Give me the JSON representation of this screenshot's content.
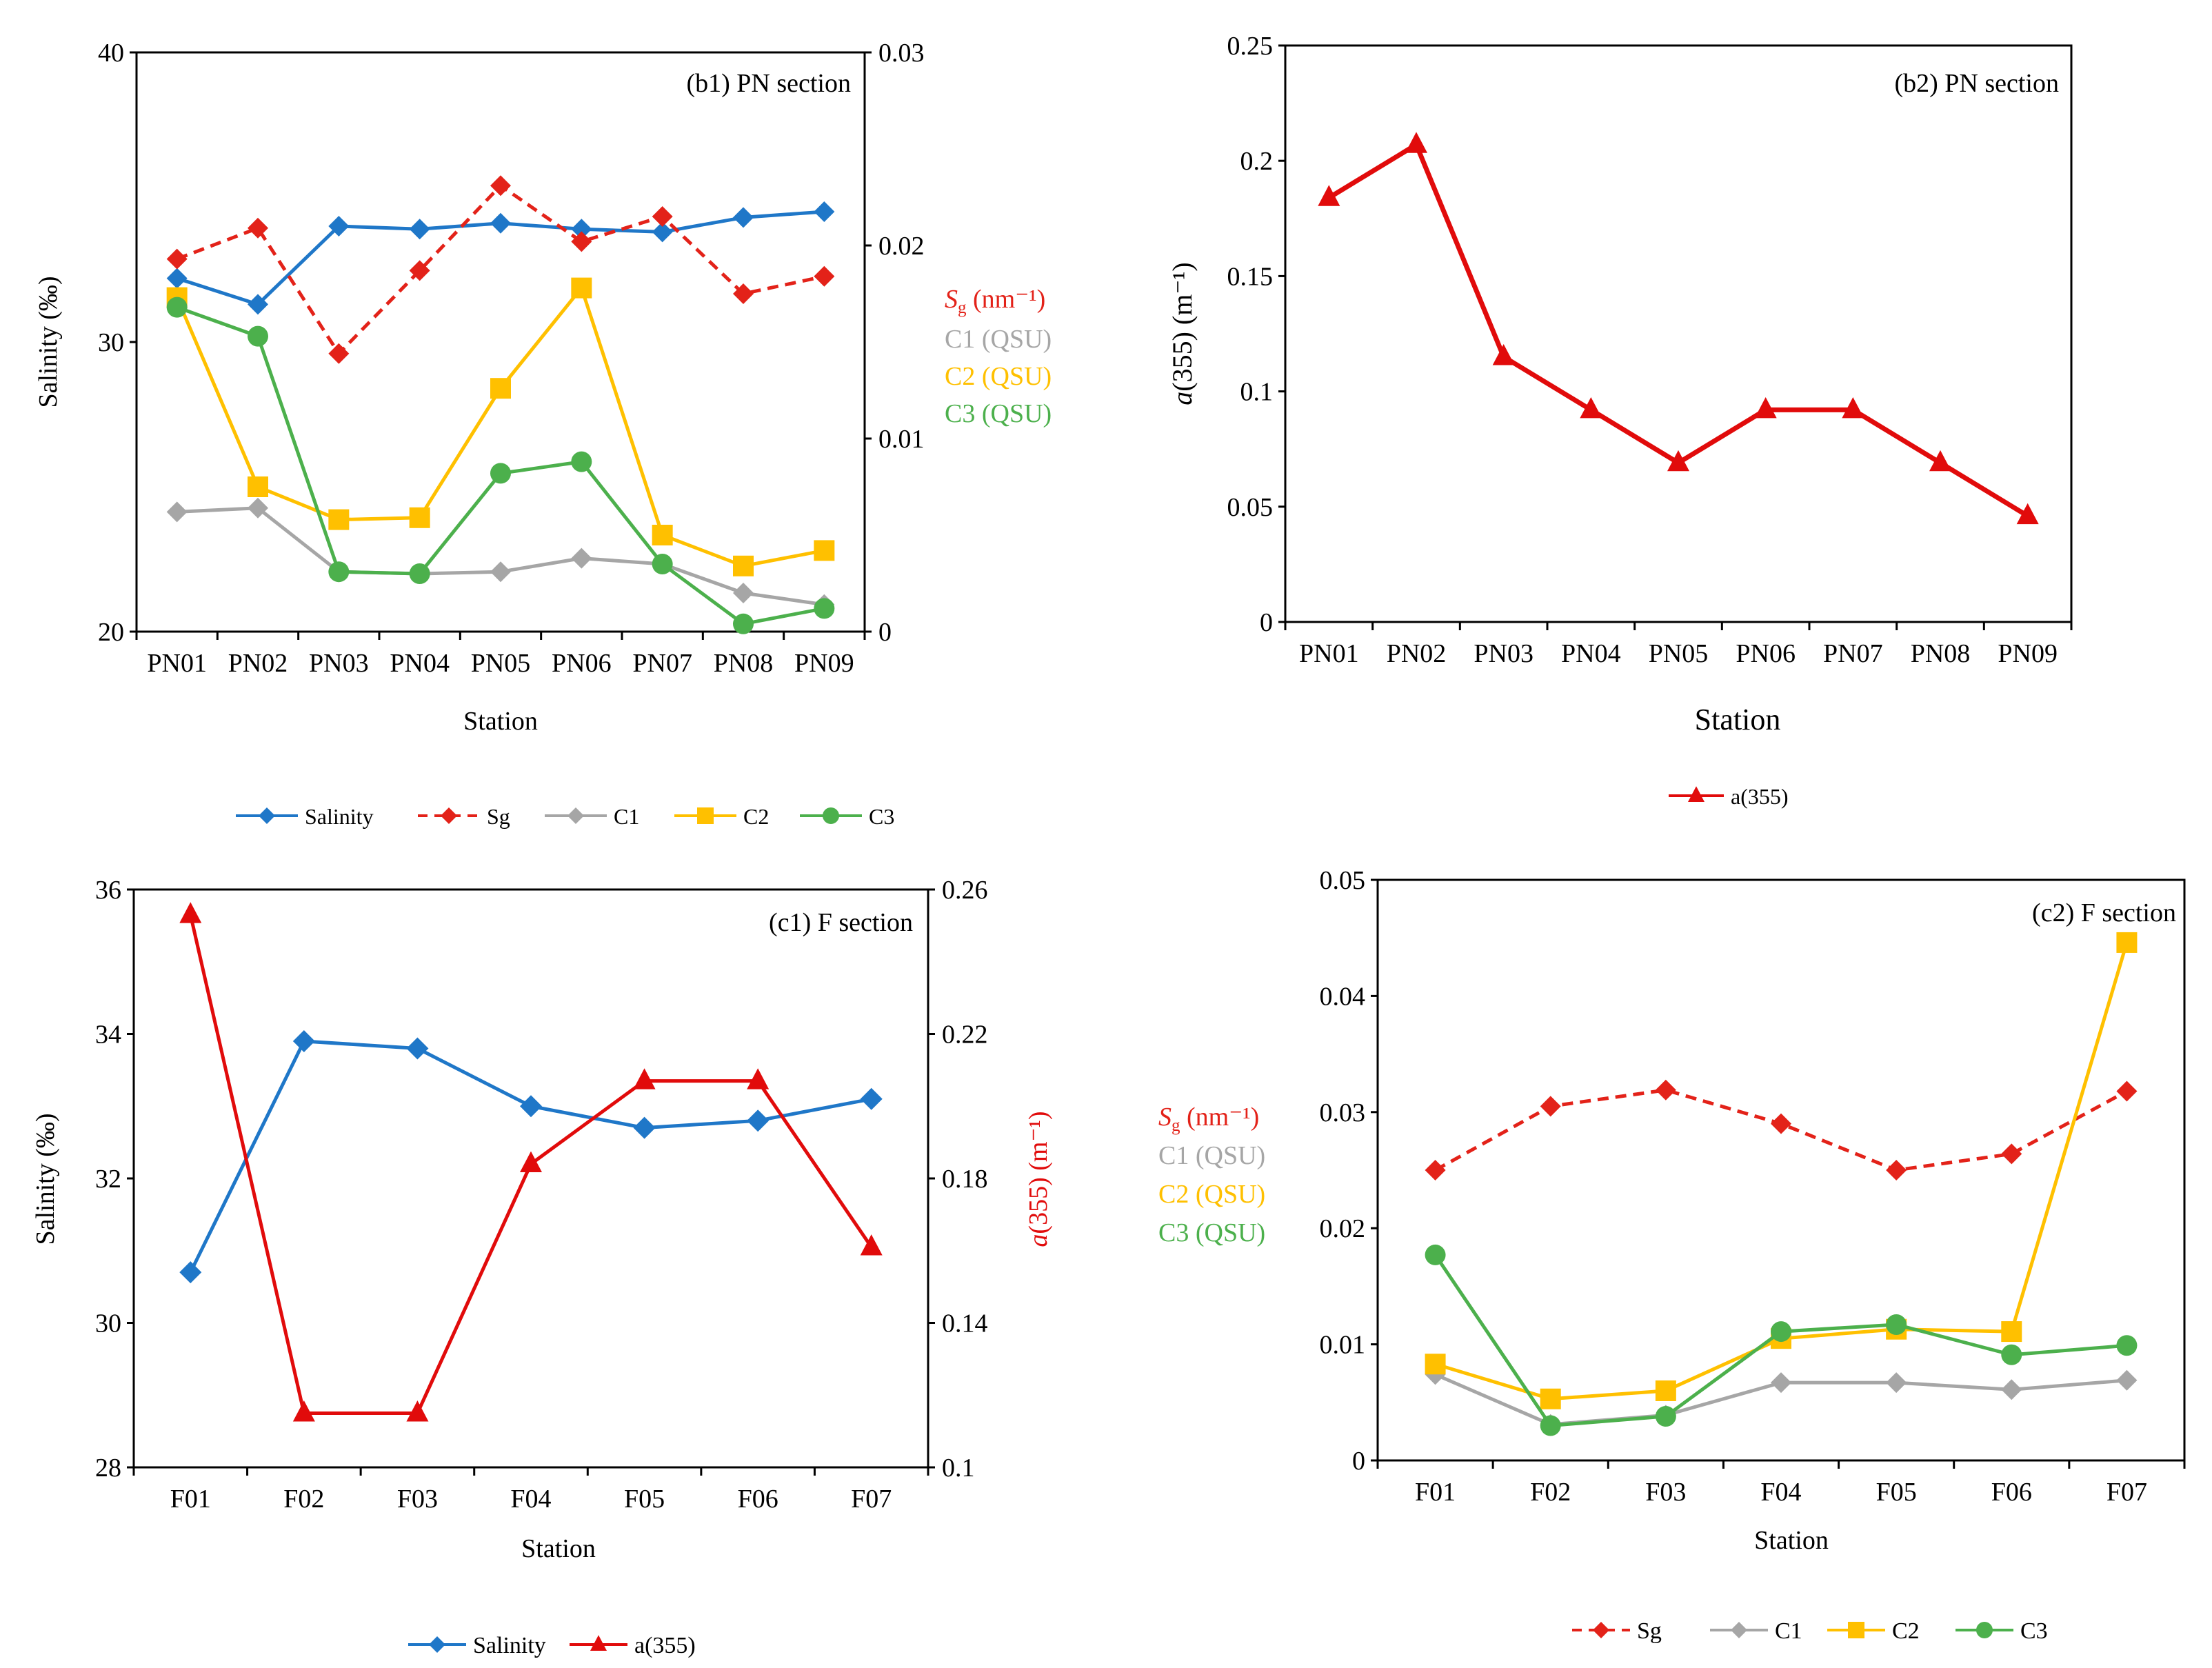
{
  "colors": {
    "salinity": "#1f77c8",
    "sg": "#e32219",
    "c1": "#a6a6a6",
    "c2": "#ffc000",
    "c3": "#4cb04c",
    "a355": "#e10b0b",
    "axis": "#000000"
  },
  "chart_data": [
    {
      "id": "b1",
      "type": "line",
      "title": "(b1) PN section",
      "categories": [
        "PN01",
        "PN02",
        "PN03",
        "PN04",
        "PN05",
        "PN06",
        "PN07",
        "PN08",
        "PN09"
      ],
      "xlabel": "Station",
      "ylabel": "Salinity (‰)",
      "ylim": [
        20,
        40
      ],
      "yticks": [
        "20",
        "30",
        "40"
      ],
      "y2lim": [
        0,
        0.03
      ],
      "y2ticks": [
        "0",
        "0.01",
        "0.02",
        "0.03"
      ],
      "y2legend": [
        {
          "main": "S",
          "sub": "g",
          "rest": " (nm⁻¹)",
          "color_key": "sg",
          "italic": true
        },
        {
          "main": "C1 (QSU)",
          "color_key": "c1"
        },
        {
          "main": "C2 (QSU)",
          "color_key": "c2"
        },
        {
          "main": "C3 (QSU)",
          "color_key": "c3"
        }
      ],
      "series": [
        {
          "name": "Salinity",
          "axis": "left",
          "marker": "diamond",
          "dash": false,
          "color_key": "salinity",
          "values": [
            32.2,
            31.3,
            34.0,
            33.9,
            34.1,
            33.9,
            33.8,
            34.3,
            34.5
          ]
        },
        {
          "name": "Sg",
          "axis": "right",
          "marker": "diamond",
          "dash": true,
          "color_key": "sg",
          "values": [
            0.0193,
            0.0209,
            0.0144,
            0.0187,
            0.0231,
            0.0202,
            0.0215,
            0.0175,
            0.0184
          ]
        },
        {
          "name": "C1",
          "axis": "right",
          "marker": "diamond",
          "dash": false,
          "color_key": "c1",
          "values": [
            0.0062,
            0.0064,
            0.0031,
            0.003,
            0.0031,
            0.0038,
            0.0035,
            0.002,
            0.0014
          ]
        },
        {
          "name": "C2",
          "axis": "right",
          "marker": "square",
          "dash": false,
          "color_key": "c2",
          "values": [
            0.0173,
            0.0075,
            0.0058,
            0.0059,
            0.0126,
            0.0178,
            0.005,
            0.0034,
            0.0042
          ]
        },
        {
          "name": "C3",
          "axis": "right",
          "marker": "circle",
          "dash": false,
          "color_key": "c3",
          "values": [
            0.0168,
            0.0153,
            0.0031,
            0.003,
            0.0082,
            0.0088,
            0.0035,
            0.0004,
            0.0012
          ]
        }
      ],
      "legend": [
        "Salinity",
        "Sg",
        "C1",
        "C2",
        "C3"
      ]
    },
    {
      "id": "b2",
      "type": "line",
      "title": "(b2) PN section",
      "categories": [
        "PN01",
        "PN02",
        "PN03",
        "PN04",
        "PN05",
        "PN06",
        "PN07",
        "PN08",
        "PN09"
      ],
      "xlabel": "Station",
      "ylabel": "a(355) (m⁻¹)",
      "ylim": [
        0,
        0.25
      ],
      "yticks": [
        "0",
        "0.05",
        "0.1",
        "0.15",
        "0.2",
        "0.25"
      ],
      "series": [
        {
          "name": "a(355)",
          "axis": "left",
          "marker": "triangle",
          "dash": false,
          "color_key": "a355",
          "values": [
            0.184,
            0.207,
            0.115,
            0.092,
            0.069,
            0.092,
            0.092,
            0.069,
            0.046
          ]
        }
      ],
      "legend": [
        "a(355)"
      ]
    },
    {
      "id": "c1",
      "type": "line",
      "title": "(c1) F section",
      "categories": [
        "F01",
        "F02",
        "F03",
        "F04",
        "F05",
        "F06",
        "F07"
      ],
      "xlabel": "Station",
      "ylabel": "Salinity (‰)",
      "ylim": [
        28,
        36
      ],
      "yticks": [
        "28",
        "30",
        "32",
        "34",
        "36"
      ],
      "y2label": "a(355) (m⁻¹)",
      "y2lim": [
        0.1,
        0.26
      ],
      "y2ticks": [
        "0.1",
        "0.14",
        "0.18",
        "0.22",
        "0.26"
      ],
      "series": [
        {
          "name": "Salinity",
          "axis": "left",
          "marker": "diamond",
          "dash": false,
          "color_key": "salinity",
          "values": [
            30.7,
            33.9,
            33.8,
            33.0,
            32.7,
            32.8,
            33.1
          ]
        },
        {
          "name": "a(355)",
          "axis": "right",
          "marker": "triangle",
          "dash": false,
          "color_key": "a355",
          "values": [
            0.253,
            0.115,
            0.115,
            0.184,
            0.207,
            0.207,
            0.161
          ]
        }
      ],
      "legend": [
        "Salinity",
        "a(355)"
      ]
    },
    {
      "id": "c2",
      "type": "line",
      "title": "(c2) F section",
      "categories": [
        "F01",
        "F02",
        "F03",
        "F04",
        "F05",
        "F06",
        "F07"
      ],
      "xlabel": "Station",
      "ylim": [
        0,
        0.05
      ],
      "yticks": [
        "0",
        "0.01",
        "0.02",
        "0.03",
        "0.04",
        "0.05"
      ],
      "yleftlegend": [
        {
          "main": "S",
          "sub": "g",
          "rest": " (nm⁻¹)",
          "color_key": "sg",
          "italic": true
        },
        {
          "main": "C1 (QSU)",
          "color_key": "c1"
        },
        {
          "main": "C2 (QSU)",
          "color_key": "c2"
        },
        {
          "main": "C3 (QSU)",
          "color_key": "c3"
        }
      ],
      "series": [
        {
          "name": "Sg",
          "axis": "left",
          "marker": "diamond",
          "dash": true,
          "color_key": "sg",
          "values": [
            0.025,
            0.0305,
            0.0319,
            0.029,
            0.025,
            0.0264,
            0.0318
          ]
        },
        {
          "name": "C1",
          "axis": "left",
          "marker": "diamond",
          "dash": false,
          "color_key": "c1",
          "values": [
            0.0074,
            0.0031,
            0.0039,
            0.0067,
            0.0067,
            0.0061,
            0.0069
          ]
        },
        {
          "name": "C2",
          "axis": "left",
          "marker": "square",
          "dash": false,
          "color_key": "c2",
          "values": [
            0.0083,
            0.0053,
            0.006,
            0.0105,
            0.0113,
            0.0111,
            0.0446
          ]
        },
        {
          "name": "C3",
          "axis": "left",
          "marker": "circle",
          "dash": false,
          "color_key": "c3",
          "values": [
            0.0177,
            0.003,
            0.0038,
            0.0111,
            0.0117,
            0.0091,
            0.0099
          ]
        }
      ],
      "legend": [
        "Sg",
        "C1",
        "C2",
        "C3"
      ]
    }
  ]
}
